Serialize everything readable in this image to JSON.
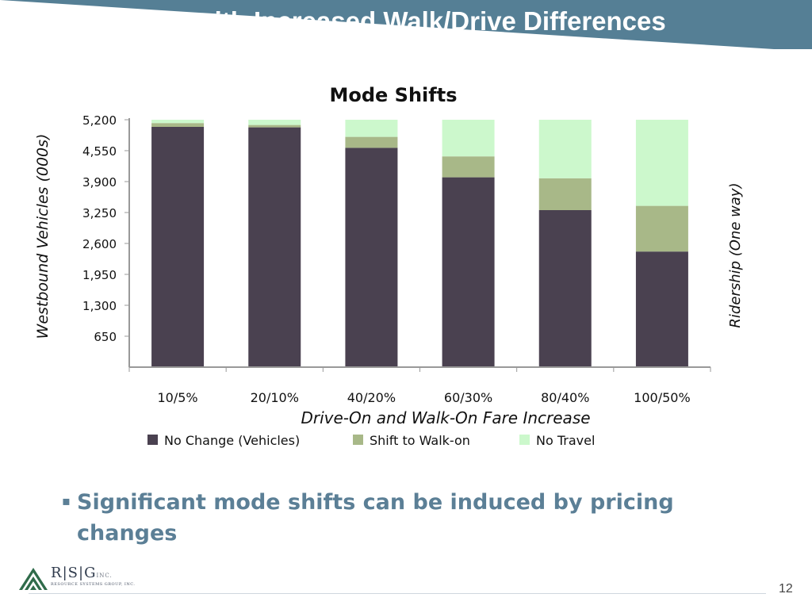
{
  "slide": {
    "title": "Higher Fares with Increased Walk/Drive Differences",
    "bullet": "Significant mode shifts can be induced by pricing changes",
    "bullet_marker": "▪",
    "page_number": "12",
    "banner_color": "#557f95",
    "text_color": "#5b7f96"
  },
  "logo": {
    "letters": [
      "R",
      "S",
      "G"
    ],
    "suffix": "INC.",
    "subtitle": "RESOURCE SYSTEMS GROUP, INC.",
    "icon": "mountains-icon"
  },
  "chart_data": {
    "type": "bar",
    "stacked": true,
    "title": "Mode Shifts",
    "xlabel": "Drive-On and Walk-On Fare Increase",
    "ylabel": "Westbound Vehicles (000s)",
    "ylabel_right": "Ridership (One way)",
    "categories": [
      "10/5%",
      "20/10%",
      "40/20%",
      "60/30%",
      "80/40%",
      "100/50%"
    ],
    "ylim": [
      0,
      5200
    ],
    "yticks": [
      650,
      1300,
      1950,
      2600,
      3250,
      3900,
      4550,
      5200
    ],
    "ytick_labels": [
      "650",
      "1,300",
      "1,950",
      "2,600",
      "3,250",
      "3,900",
      "4,550",
      "5,200"
    ],
    "grid": false,
    "legend_position": "bottom",
    "series": [
      {
        "name": "No Change (Vehicles)",
        "color": "#4a4150",
        "values": [
          5050,
          5040,
          4610,
          3990,
          3300,
          2430
        ]
      },
      {
        "name": "Shift to Walk-on",
        "color": "#a8b888",
        "values": [
          80,
          50,
          230,
          440,
          670,
          960
        ]
      },
      {
        "name": "No Travel",
        "color": "#ccf8cc",
        "values": [
          70,
          110,
          360,
          770,
          1230,
          1810
        ]
      }
    ]
  }
}
